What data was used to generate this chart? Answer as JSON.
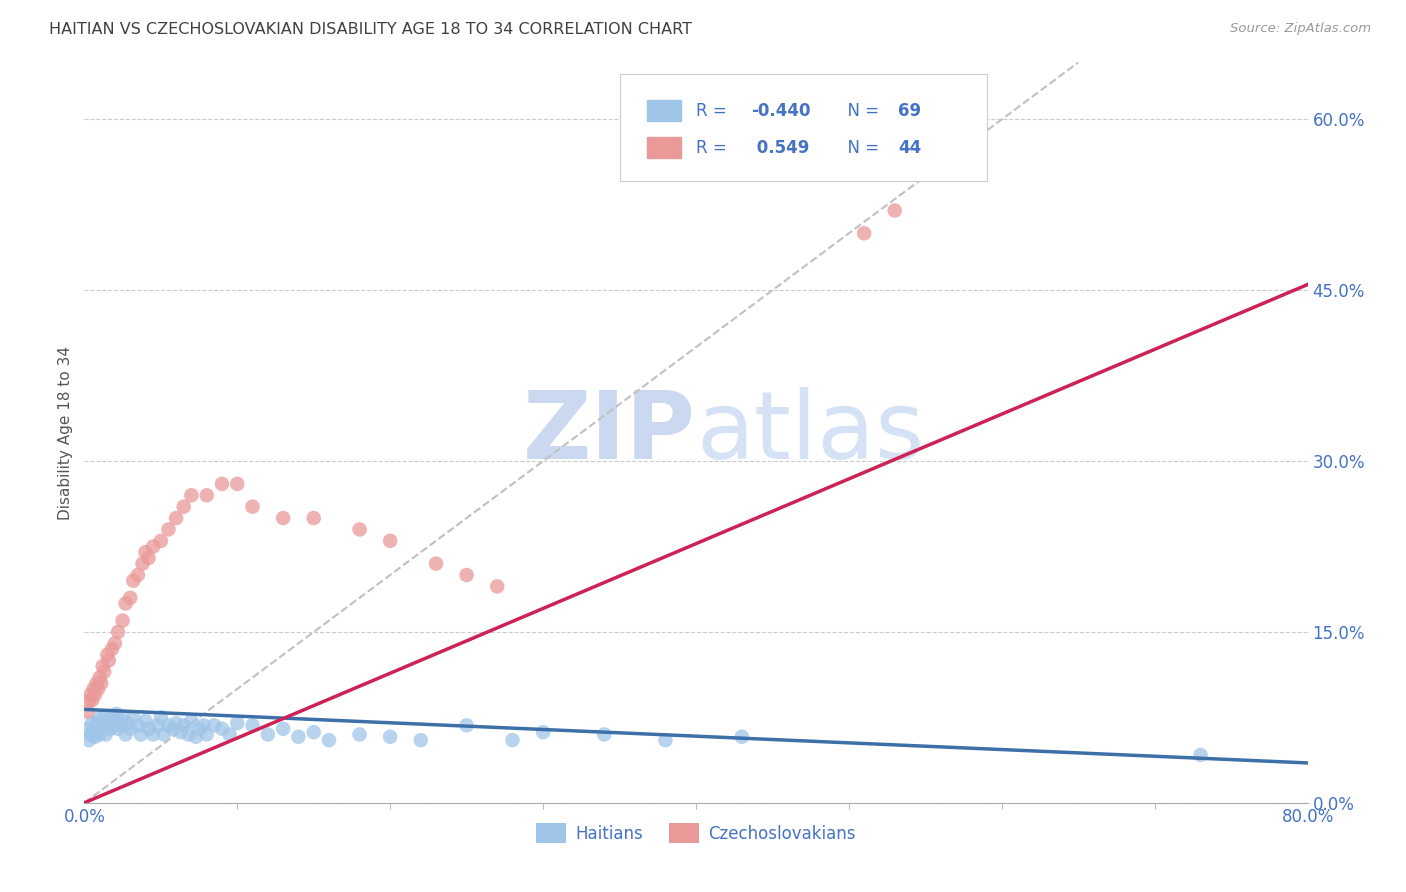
{
  "title": "HAITIAN VS CZECHOSLOVAKIAN DISABILITY AGE 18 TO 34 CORRELATION CHART",
  "source": "Source: ZipAtlas.com",
  "ylabel": "Disability Age 18 to 34",
  "xlim": [
    0.0,
    0.8
  ],
  "ylim": [
    0.0,
    0.65
  ],
  "xtick_show": [
    0.0,
    0.8
  ],
  "xtick_show_labels": [
    "0.0%",
    "80.0%"
  ],
  "xtick_minor": [
    0.1,
    0.2,
    0.3,
    0.4,
    0.5,
    0.6,
    0.7
  ],
  "yticks_right": [
    0.0,
    0.15,
    0.3,
    0.45,
    0.6
  ],
  "ytick_labels_right": [
    "0.0%",
    "15.0%",
    "30.0%",
    "45.0%",
    "60.0%"
  ],
  "blue_color": "#9fc5e8",
  "pink_color": "#ea9999",
  "blue_line_color": "#3d6fa8",
  "pink_line_color": "#cc2255",
  "title_color": "#404040",
  "axis_label_color": "#555555",
  "tick_color": "#4472c4",
  "watermark_zip_color": "#cdd8f0",
  "watermark_atlas_color": "#d8e4f5",
  "background_color": "#ffffff",
  "grid_color": "#cccccc",
  "ref_line_color": "#c0c0c0",
  "r_blue": -0.44,
  "r_pink": 0.549,
  "n_blue": 69,
  "n_pink": 44,
  "blue_line_x0": 0.0,
  "blue_line_x1": 0.8,
  "blue_line_y0": 0.082,
  "blue_line_y1": 0.035,
  "pink_line_x0": 0.0,
  "pink_line_x1": 0.8,
  "pink_line_y0": 0.0,
  "pink_line_y1": 0.455,
  "blue_x": [
    0.002,
    0.003,
    0.004,
    0.005,
    0.005,
    0.006,
    0.007,
    0.008,
    0.008,
    0.009,
    0.01,
    0.01,
    0.011,
    0.012,
    0.013,
    0.014,
    0.015,
    0.016,
    0.017,
    0.018,
    0.02,
    0.021,
    0.022,
    0.023,
    0.024,
    0.025,
    0.027,
    0.028,
    0.03,
    0.032,
    0.035,
    0.037,
    0.04,
    0.042,
    0.045,
    0.048,
    0.05,
    0.052,
    0.055,
    0.058,
    0.06,
    0.063,
    0.065,
    0.068,
    0.07,
    0.073,
    0.075,
    0.078,
    0.08,
    0.085,
    0.09,
    0.095,
    0.1,
    0.11,
    0.12,
    0.13,
    0.14,
    0.15,
    0.16,
    0.18,
    0.2,
    0.22,
    0.25,
    0.28,
    0.3,
    0.34,
    0.38,
    0.43,
    0.73
  ],
  "blue_y": [
    0.065,
    0.055,
    0.06,
    0.06,
    0.07,
    0.065,
    0.058,
    0.07,
    0.062,
    0.068,
    0.075,
    0.06,
    0.07,
    0.065,
    0.075,
    0.06,
    0.068,
    0.072,
    0.065,
    0.075,
    0.068,
    0.078,
    0.065,
    0.072,
    0.068,
    0.075,
    0.06,
    0.07,
    0.065,
    0.075,
    0.068,
    0.06,
    0.072,
    0.065,
    0.06,
    0.068,
    0.075,
    0.06,
    0.068,
    0.065,
    0.07,
    0.062,
    0.068,
    0.06,
    0.072,
    0.058,
    0.065,
    0.068,
    0.06,
    0.068,
    0.065,
    0.06,
    0.07,
    0.068,
    0.06,
    0.065,
    0.058,
    0.062,
    0.055,
    0.06,
    0.058,
    0.055,
    0.068,
    0.055,
    0.062,
    0.06,
    0.055,
    0.058,
    0.042
  ],
  "pink_x": [
    0.002,
    0.003,
    0.004,
    0.005,
    0.006,
    0.007,
    0.008,
    0.009,
    0.01,
    0.011,
    0.012,
    0.013,
    0.015,
    0.016,
    0.018,
    0.02,
    0.022,
    0.025,
    0.027,
    0.03,
    0.032,
    0.035,
    0.038,
    0.04,
    0.042,
    0.045,
    0.05,
    0.055,
    0.06,
    0.065,
    0.07,
    0.08,
    0.09,
    0.1,
    0.11,
    0.13,
    0.15,
    0.18,
    0.2,
    0.23,
    0.25,
    0.27,
    0.51,
    0.53
  ],
  "pink_y": [
    0.08,
    0.09,
    0.095,
    0.09,
    0.1,
    0.095,
    0.105,
    0.1,
    0.11,
    0.105,
    0.12,
    0.115,
    0.13,
    0.125,
    0.135,
    0.14,
    0.15,
    0.16,
    0.175,
    0.18,
    0.195,
    0.2,
    0.21,
    0.22,
    0.215,
    0.225,
    0.23,
    0.24,
    0.25,
    0.26,
    0.27,
    0.27,
    0.28,
    0.28,
    0.26,
    0.25,
    0.25,
    0.24,
    0.23,
    0.21,
    0.2,
    0.19,
    0.5,
    0.52
  ]
}
